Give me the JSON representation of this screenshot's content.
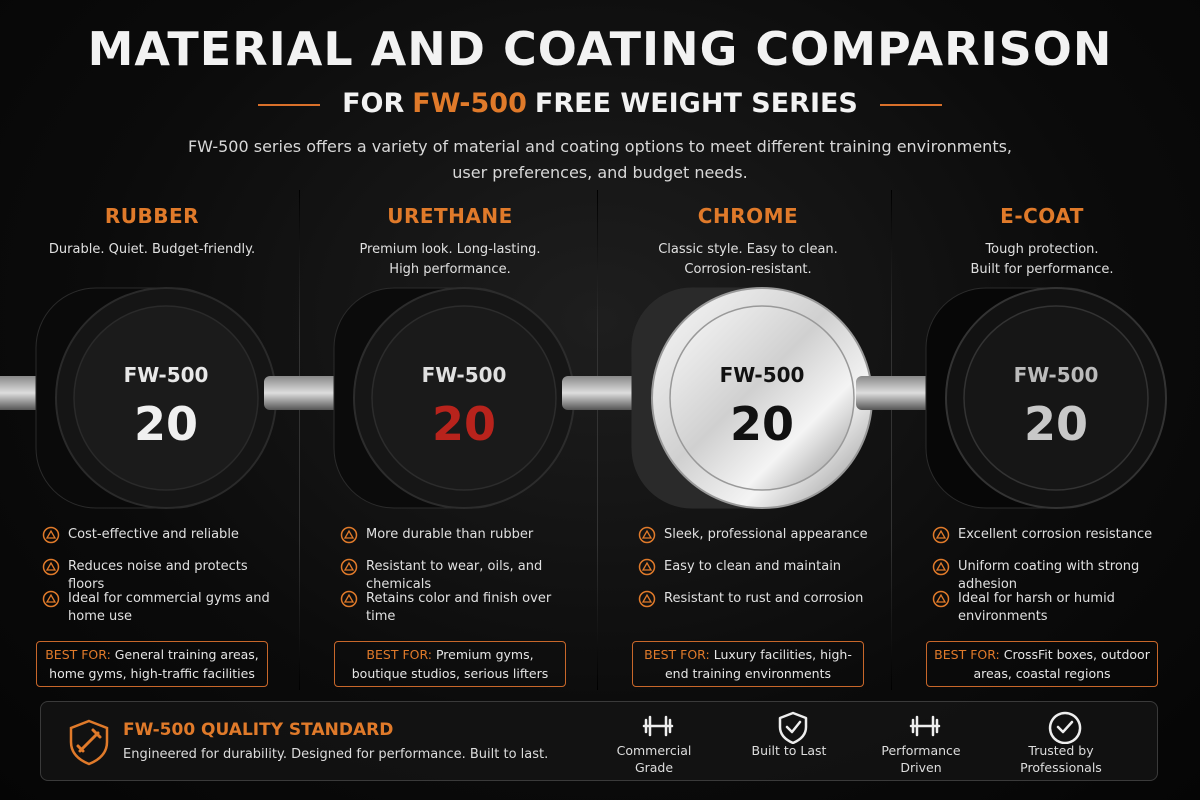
{
  "header": {
    "title": "MATERIAL AND COATING COMPARISON",
    "subtitle": {
      "before": "FOR",
      "highlight": "FW-500",
      "after": "FREE WEIGHT SERIES"
    },
    "intro": [
      "FW-500 series offers a variety of material and coating options to meet different training environments,",
      "user preferences, and budget needs."
    ]
  },
  "columns": [
    {
      "name": "RUBBER",
      "tagline": [
        "Durable. Quiet. Budget-friendly."
      ],
      "label": "FW-500",
      "weight": 20,
      "features": [
        "Cost-effective and reliable",
        "Reduces noise and protects floors",
        "Ideal for commercial gyms and home use"
      ],
      "best_for": {
        "label": "BEST FOR:",
        "text": "General training areas, home gyms, high-traffic facilities"
      }
    },
    {
      "name": "URETHANE",
      "tagline": [
        "Premium look. Long-lasting.",
        "High performance."
      ],
      "label": "FW-500",
      "weight": 20,
      "features": [
        "More durable than rubber",
        "Resistant to wear, oils, and chemicals",
        "Retains color and finish over time"
      ],
      "best_for": {
        "label": "BEST FOR:",
        "text": "Premium gyms, boutique studios, serious lifters"
      }
    },
    {
      "name": "CHROME",
      "tagline": [
        "Classic style. Easy to clean.",
        "Corrosion-resistant."
      ],
      "label": "FW-500",
      "weight": 20,
      "features": [
        "Sleek, professional appearance",
        "Easy to clean and maintain",
        "Resistant to rust and corrosion"
      ],
      "best_for": {
        "label": "BEST FOR:",
        "text": "Luxury facilities, high-end training environments"
      }
    },
    {
      "name": "E-COAT",
      "tagline": [
        "Tough protection.",
        "Built for performance."
      ],
      "label": "FW-500",
      "weight": 20,
      "features": [
        "Excellent corrosion resistance",
        "Uniform coating with strong adhesion",
        "Ideal for harsh or humid environments"
      ],
      "best_for": {
        "label": "BEST FOR:",
        "text": "CrossFit boxes, outdoor areas, coastal regions"
      }
    }
  ],
  "footer": {
    "title": "FW-500 QUALITY STANDARD",
    "tagline": "Engineered for durability. Designed for performance. Built to last.",
    "badges": [
      "Commercial Grade",
      "Built to Last",
      "Performance Driven",
      "Trusted by Professionals"
    ]
  }
}
